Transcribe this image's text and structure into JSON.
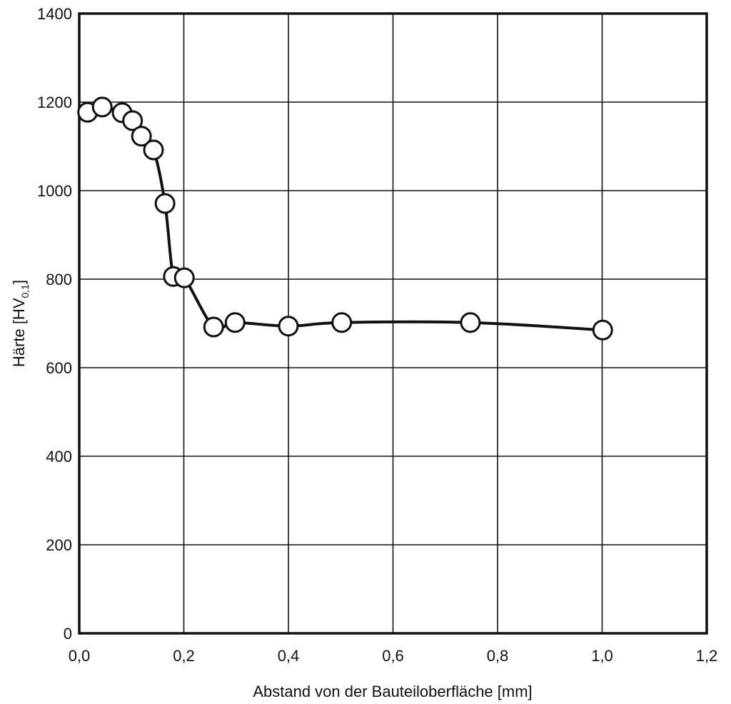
{
  "chart_data": {
    "type": "line",
    "xlabel": "Abstand von der Bauteiloberfläche [mm]",
    "ylabel": [
      "Härte [HV",
      "0,1",
      "]"
    ],
    "x": [
      0.016,
      0.044,
      0.082,
      0.102,
      0.119,
      0.142,
      0.164,
      0.18,
      0.201,
      0.257,
      0.298,
      0.4,
      0.502,
      0.748,
      1.001
    ],
    "series": [
      {
        "color": "#111111",
        "values": [
          1177,
          1189,
          1176,
          1158,
          1123,
          1092,
          971,
          806,
          803,
          692,
          702,
          694,
          702,
          702,
          685
        ]
      }
    ],
    "xlim": [
      0,
      1.2
    ],
    "xticks": [
      {
        "value": 0,
        "label": "0,0"
      },
      {
        "value": 0.2,
        "label": "0,2"
      },
      {
        "value": 0.4,
        "label": "0,4"
      },
      {
        "value": 0.6,
        "label": "0,6"
      },
      {
        "value": 0.8,
        "label": "0,8"
      },
      {
        "value": 1.0,
        "label": "1,0"
      },
      {
        "value": 1.2,
        "label": "1,2"
      }
    ],
    "ylim": [
      0,
      1400
    ],
    "yticks": [
      0,
      200,
      400,
      600,
      800,
      1000,
      1200,
      1400
    ],
    "grid": true
  }
}
